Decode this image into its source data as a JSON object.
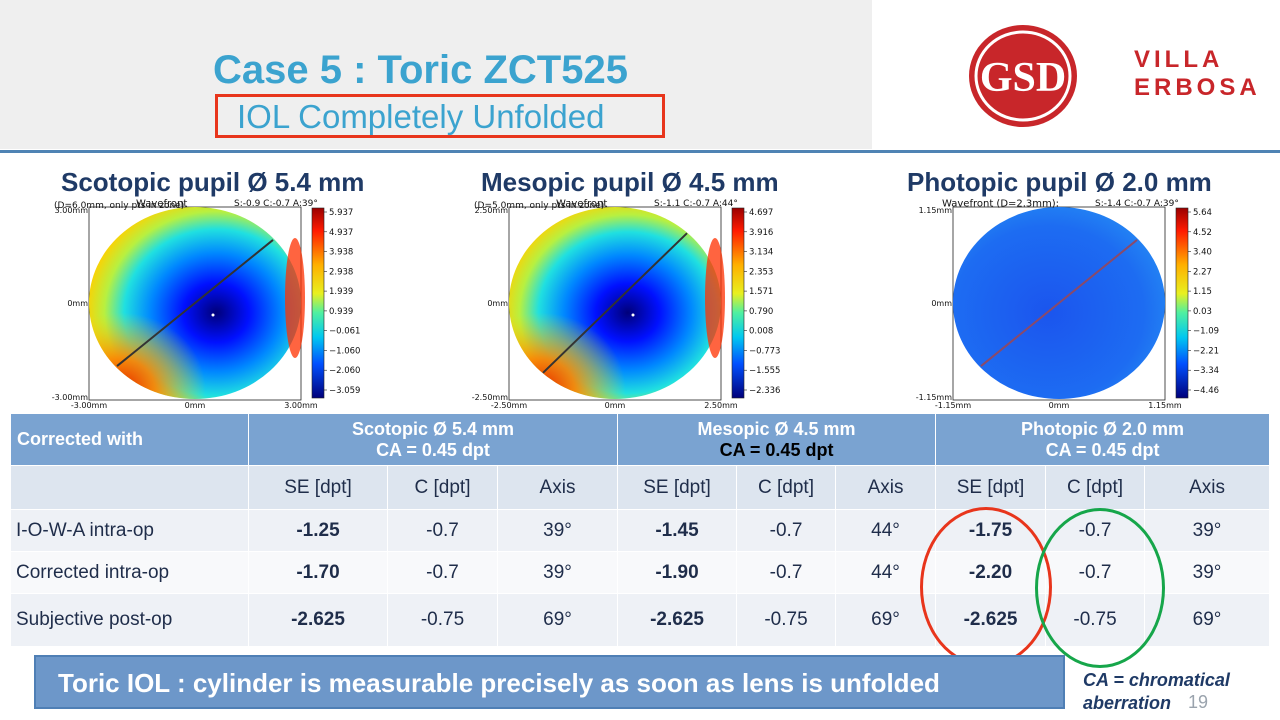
{
  "header": {
    "title": "Case 5 : Toric ZCT525",
    "subtitle": "IOL Completely Unfolded",
    "logo_monogram": "GSD",
    "brand_line1": "VILLA",
    "brand_line2": "ERBOSA",
    "colors": {
      "title": "#3ba3cf",
      "subtitle_box": "#e8351c",
      "brand": "#c8262a"
    }
  },
  "maps": [
    {
      "heading": "Scotopic pupil Ø 5.4 mm",
      "plot_title": "Wavefront",
      "zone_label": "(D=6.0mm, only pts in zone)",
      "stats": "S:-0.9 C:-0.7 A:39°",
      "y_top": "3.00mm",
      "y_mid": "0mm",
      "y_bottom": "-3.00mm",
      "x_left": "-3.00mm",
      "x_mid": "0mm",
      "x_right": "3.00mm",
      "colorbar": [
        "5.937",
        "4.937",
        "3.938",
        "2.938",
        "1.939",
        "0.939",
        "−0.061",
        "−1.060",
        "−2.060",
        "−3.059"
      ],
      "style": "scotopic"
    },
    {
      "heading": "Mesopic pupil Ø 4.5 mm",
      "plot_title": "Wavefront",
      "zone_label": "(D=5.0mm, only pts in zone)",
      "stats": "S:-1.1 C:-0.7 A:44°",
      "y_top": "2.50mm",
      "y_mid": "0mm",
      "y_bottom": "-2.50mm",
      "x_left": "-2.50mm",
      "x_mid": "0mm",
      "x_right": "2.50mm",
      "colorbar": [
        "4.697",
        "3.916",
        "3.134",
        "2.353",
        "1.571",
        "0.790",
        "0.008",
        "−0.773",
        "−1.555",
        "−2.336"
      ],
      "style": "mesopic"
    },
    {
      "heading": "Photopic pupil Ø 2.0 mm",
      "plot_title": "Wavefront (D=2.3mm):",
      "zone_label": "",
      "stats": "S:-1.4 C:-0.7 A:39°",
      "y_top": "1.15mm",
      "y_mid": "0mm",
      "y_bottom": "-1.15mm",
      "x_left": "-1.15mm",
      "x_mid": "0mm",
      "x_right": "1.15mm",
      "colorbar": [
        "5.64",
        "4.52",
        "3.40",
        "2.27",
        "1.15",
        "0.03",
        "−1.09",
        "−2.21",
        "−3.34",
        "−4.46"
      ],
      "style": "photopic"
    }
  ],
  "table": {
    "corner": "Corrected with",
    "groups": [
      {
        "name": "Scotopic Ø 5.4 mm",
        "ca": "CA = 0.45 dpt"
      },
      {
        "name": "Mesopic Ø 4.5 mm",
        "ca": "CA = 0.45 dpt"
      },
      {
        "name": "Photopic Ø 2.0 mm",
        "ca": "CA = 0.45 dpt"
      }
    ],
    "subheaders": [
      "SE [dpt]",
      "C [dpt]",
      "Axis"
    ],
    "rows": [
      {
        "label": "I-O-W-A intra-op",
        "cells": [
          "-1.25",
          "-0.7",
          "39°",
          "-1.45",
          "-0.7",
          "44°",
          "-1.75",
          "-0.7",
          "39°"
        ]
      },
      {
        "label": "Corrected intra-op",
        "cells": [
          "-1.70",
          "-0.7",
          "39°",
          "-1.90",
          "-0.7",
          "44°",
          "-2.20",
          "-0.7",
          "39°"
        ]
      },
      {
        "label": "Subjective post-op",
        "cells": [
          "-2.625",
          "-0.75",
          "69°",
          "-2.625",
          "-0.75",
          "69°",
          "-2.625",
          "-0.75",
          "69°"
        ]
      }
    ]
  },
  "banner": "Toric IOL : cylinder is measurable precisely as soon as lens is unfolded",
  "ca_note_line1": "CA = chromatical",
  "ca_note_line2": "aberration",
  "page_number": "19"
}
